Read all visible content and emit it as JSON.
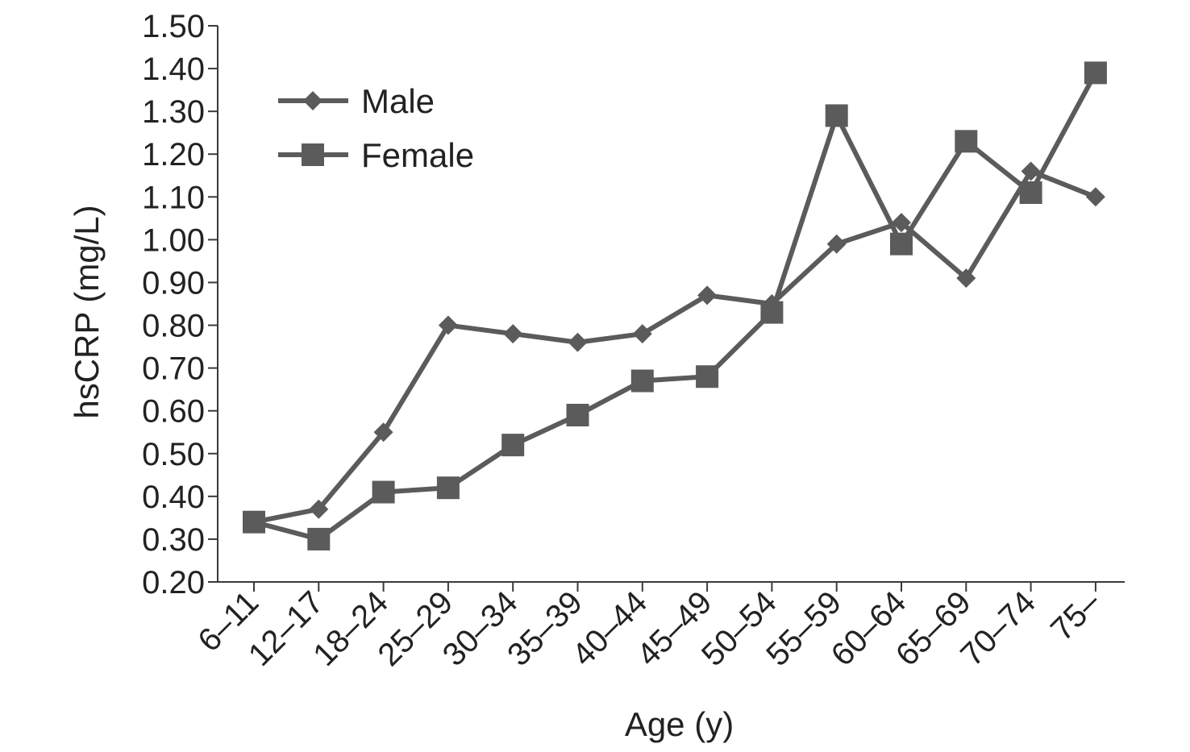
{
  "chart_data": {
    "type": "line",
    "title": "",
    "xlabel": "Age (y)",
    "ylabel": "hsCRP (mg/L)",
    "ylim": [
      0.2,
      1.5
    ],
    "yticks": [
      "0.20",
      "0.30",
      "0.40",
      "0.50",
      "0.60",
      "0.70",
      "0.80",
      "0.90",
      "1.00",
      "1.10",
      "1.20",
      "1.30",
      "1.40",
      "1.50"
    ],
    "categories": [
      "6–11",
      "12–17",
      "18–24",
      "25–29",
      "30–34",
      "35–39",
      "40–44",
      "45–49",
      "50–54",
      "55–59",
      "60–64",
      "65–69",
      "70–74",
      "75–"
    ],
    "grid": false,
    "legend_position": "top-left",
    "series": [
      {
        "name": "Male",
        "marker": "diamond",
        "color": "#5b5b5b",
        "values": [
          0.34,
          0.37,
          0.55,
          0.8,
          0.78,
          0.76,
          0.78,
          0.87,
          0.85,
          0.99,
          1.04,
          0.91,
          1.16,
          1.1
        ]
      },
      {
        "name": "Female",
        "marker": "square",
        "color": "#5b5b5b",
        "values": [
          0.34,
          0.3,
          0.41,
          0.42,
          0.52,
          0.59,
          0.67,
          0.68,
          0.83,
          1.29,
          0.99,
          1.23,
          1.11,
          1.39
        ]
      }
    ]
  }
}
